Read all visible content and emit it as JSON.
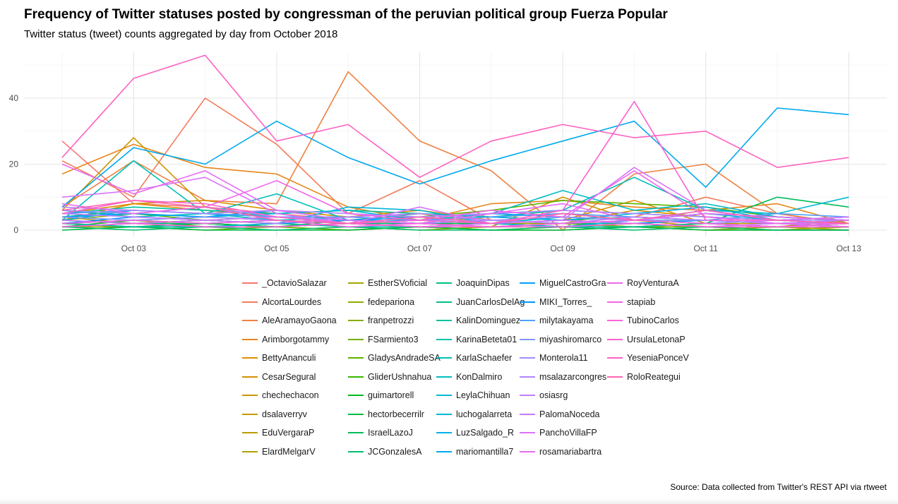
{
  "chart_data": {
    "type": "line",
    "title": "Frequency of Twitter statuses posted by congressman of the peruvian political group Fuerza Popular",
    "subtitle": "Twitter status (tweet) counts aggregated by day from October 2018",
    "caption": "Source: Data collected from Twitter's REST API via rtweet",
    "xlabel": "",
    "ylabel": "",
    "x": [
      "2018-10-02",
      "2018-10-03",
      "2018-10-04",
      "2018-10-05",
      "2018-10-06",
      "2018-10-07",
      "2018-10-08",
      "2018-10-09",
      "2018-10-10",
      "2018-10-11",
      "2018-10-12",
      "2018-10-13"
    ],
    "xticks": [
      "Oct 03",
      "Oct 05",
      "Oct 07",
      "Oct 09",
      "Oct 11",
      "Oct 13"
    ],
    "yticks": [
      0,
      20,
      40
    ],
    "ylim": [
      0,
      54
    ],
    "grid": true,
    "legend_position": "bottom",
    "series": [
      {
        "name": "_OctavioSalazar",
        "color": "#F8766D",
        "values": [
          27,
          8,
          7,
          5,
          3,
          2,
          2,
          1,
          1,
          2,
          1,
          1
        ]
      },
      {
        "name": "AlcortaLourdes",
        "color": "#F37B59",
        "values": [
          21,
          10,
          40,
          26,
          5,
          15,
          3,
          2,
          4,
          10,
          5,
          2
        ]
      },
      {
        "name": "AleAramayoGaona",
        "color": "#ED8141",
        "values": [
          7,
          21,
          9,
          8,
          48,
          27,
          18,
          0,
          17,
          20,
          5,
          2
        ]
      },
      {
        "name": "Arimborgotammy",
        "color": "#E7861B",
        "values": [
          17,
          26,
          19,
          17,
          7,
          3,
          8,
          9,
          7,
          6,
          8,
          2
        ]
      },
      {
        "name": "BettyAnanculi",
        "color": "#E08B00",
        "values": [
          3,
          8,
          6,
          4,
          3,
          5,
          2,
          3,
          9,
          2,
          1,
          3
        ]
      },
      {
        "name": "CesarSegural",
        "color": "#D89000",
        "values": [
          5,
          8,
          9,
          6,
          4,
          6,
          3,
          2,
          6,
          4,
          3,
          2
        ]
      },
      {
        "name": "chechechacon",
        "color": "#CF9400",
        "values": [
          6,
          28,
          7,
          3,
          2,
          2,
          1,
          10,
          3,
          1,
          0,
          1
        ]
      },
      {
        "name": "dsalaverryv",
        "color": "#C59900",
        "values": [
          2,
          3,
          2,
          1,
          2,
          1,
          2,
          1,
          2,
          1,
          1,
          1
        ]
      },
      {
        "name": "EduVergaraP",
        "color": "#BB9D00",
        "values": [
          4,
          2,
          3,
          2,
          3,
          2,
          1,
          2,
          1,
          2,
          2,
          1
        ]
      },
      {
        "name": "ElardMelgarV",
        "color": "#AFA100",
        "values": [
          1,
          1,
          2,
          1,
          0,
          1,
          0,
          1,
          1,
          0,
          1,
          0
        ]
      },
      {
        "name": "EstherSVoficial",
        "color": "#A3A500",
        "values": [
          2,
          3,
          1,
          2,
          1,
          0,
          1,
          1,
          2,
          1,
          0,
          1
        ]
      },
      {
        "name": "fedepariona",
        "color": "#95A900",
        "values": [
          3,
          5,
          4,
          3,
          4,
          3,
          2,
          2,
          1,
          2,
          1,
          2
        ]
      },
      {
        "name": "franpetrozzi",
        "color": "#85AD00",
        "values": [
          1,
          2,
          1,
          1,
          2,
          1,
          1,
          2,
          1,
          1,
          1,
          1
        ]
      },
      {
        "name": "FSarmiento3",
        "color": "#72B000",
        "values": [
          2,
          1,
          0,
          1,
          0,
          1,
          0,
          0,
          1,
          0,
          0,
          0
        ]
      },
      {
        "name": "GladysAndradeSA",
        "color": "#5BB300",
        "values": [
          4,
          5,
          3,
          2,
          3,
          4,
          6,
          9,
          8,
          7,
          4,
          3
        ]
      },
      {
        "name": "GliderUshnahua",
        "color": "#39B600",
        "values": [
          3,
          2,
          3,
          4,
          2,
          3,
          4,
          5,
          3,
          3,
          2,
          2
        ]
      },
      {
        "name": "guimartorell",
        "color": "#00B81F",
        "values": [
          1,
          3,
          2,
          1,
          2,
          1,
          1,
          1,
          2,
          1,
          1,
          2
        ]
      },
      {
        "name": "hectorbecerrilr",
        "color": "#00BA42",
        "values": [
          0,
          1,
          0,
          0,
          0,
          1,
          0,
          0,
          1,
          0,
          0,
          0
        ]
      },
      {
        "name": "IsraelLazoJ",
        "color": "#00BC59",
        "values": [
          2,
          1,
          2,
          1,
          3,
          2,
          2,
          4,
          3,
          2,
          10,
          7
        ]
      },
      {
        "name": "JCGonzalesA",
        "color": "#00BE6C",
        "values": [
          1,
          0,
          1,
          0,
          1,
          0,
          0,
          1,
          0,
          1,
          0,
          0
        ]
      },
      {
        "name": "JoaquinDipas",
        "color": "#00BF7D",
        "values": [
          3,
          2,
          2,
          3,
          2,
          2,
          3,
          2,
          2,
          3,
          2,
          2
        ]
      },
      {
        "name": "JuanCarlosDelAg",
        "color": "#00C08D",
        "values": [
          4,
          6,
          5,
          4,
          3,
          5,
          4,
          3,
          4,
          3,
          2,
          3
        ]
      },
      {
        "name": "KalinDominguez",
        "color": "#00C19C",
        "values": [
          5,
          7,
          6,
          5,
          6,
          5,
          4,
          6,
          5,
          4,
          3,
          4
        ]
      },
      {
        "name": "KarinaBeteta01",
        "color": "#00C1AA",
        "values": [
          2,
          1,
          1,
          2,
          1,
          1,
          2,
          1,
          1,
          2,
          1,
          1
        ]
      },
      {
        "name": "KarlaSchaefer",
        "color": "#00C0B8",
        "values": [
          3,
          21,
          5,
          11,
          3,
          2,
          5,
          6,
          16,
          6,
          3,
          2
        ]
      },
      {
        "name": "KonDalmiro",
        "color": "#00BDC4",
        "values": [
          6,
          4,
          5,
          3,
          4,
          3,
          5,
          12,
          6,
          8,
          4,
          3
        ]
      },
      {
        "name": "LeylaChihuan",
        "color": "#00BAD0",
        "values": [
          2,
          3,
          4,
          5,
          6,
          3,
          2,
          4,
          3,
          6,
          5,
          10
        ]
      },
      {
        "name": "luchogalarreta",
        "color": "#00B5DB",
        "values": [
          1,
          2,
          1,
          2,
          7,
          6,
          2,
          1,
          3,
          5,
          3,
          2
        ]
      },
      {
        "name": "LuzSalgado_R",
        "color": "#00B0E5",
        "values": [
          3,
          6,
          5,
          4,
          3,
          3,
          4,
          3,
          5,
          7,
          3,
          4
        ]
      },
      {
        "name": "mariomantilla7",
        "color": "#00A9EF",
        "values": [
          7,
          25,
          20,
          33,
          22,
          14,
          21,
          27,
          33,
          13,
          37,
          35
        ]
      },
      {
        "name": "MiguelCastroGra",
        "color": "#00A2F7",
        "values": [
          4,
          5,
          4,
          6,
          3,
          4,
          5,
          4,
          3,
          5,
          4,
          3
        ]
      },
      {
        "name": "MIKI_Torres_",
        "color": "#0099FC",
        "values": [
          2,
          4,
          3,
          2,
          3,
          4,
          2,
          3,
          2,
          3,
          2,
          1
        ]
      },
      {
        "name": "milytakayama",
        "color": "#529EFF",
        "values": [
          5,
          6,
          5,
          4,
          4,
          3,
          4,
          5,
          4,
          3,
          5,
          4
        ]
      },
      {
        "name": "miyashiromarco",
        "color": "#7F96FF",
        "values": [
          4,
          3,
          4,
          3,
          2,
          3,
          3,
          2,
          3,
          3,
          2,
          2
        ]
      },
      {
        "name": "Monterola11",
        "color": "#9A8EFF",
        "values": [
          6,
          5,
          7,
          4,
          3,
          2,
          3,
          4,
          3,
          2,
          3,
          3
        ]
      },
      {
        "name": "msalazarcongres",
        "color": "#AF86FF",
        "values": [
          7,
          6,
          5,
          6,
          5,
          4,
          5,
          6,
          5,
          4,
          3,
          4
        ]
      },
      {
        "name": "osiasrg",
        "color": "#C07EFF",
        "values": [
          5,
          4,
          3,
          2,
          4,
          5,
          3,
          2,
          4,
          3,
          2,
          3
        ]
      },
      {
        "name": "PalomaNoceda",
        "color": "#CF78FF",
        "values": [
          3,
          2,
          3,
          4,
          2,
          1,
          2,
          3,
          2,
          1,
          2,
          1
        ]
      },
      {
        "name": "PanchoVillaFP",
        "color": "#DB72FB",
        "values": [
          10,
          12,
          16,
          5,
          2,
          7,
          2,
          3,
          19,
          6,
          3,
          4
        ]
      },
      {
        "name": "rosamariabartra",
        "color": "#E76BF3",
        "values": [
          20,
          11,
          18,
          6,
          3,
          2,
          5,
          8,
          3,
          5,
          4,
          3
        ]
      },
      {
        "name": "RoyVenturaA",
        "color": "#EF67EB",
        "values": [
          8,
          5,
          7,
          15,
          5,
          3,
          6,
          4,
          18,
          4,
          2,
          2
        ]
      },
      {
        "name": "stapiab",
        "color": "#F564E3",
        "values": [
          2,
          3,
          2,
          3,
          1,
          2,
          1,
          2,
          3,
          2,
          1,
          2
        ]
      },
      {
        "name": "TubinoCarlos",
        "color": "#FA62D9",
        "values": [
          1,
          2,
          1,
          1,
          2,
          1,
          1,
          1,
          2,
          1,
          1,
          1
        ]
      },
      {
        "name": "UrsulaLetonaP",
        "color": "#FD61CE",
        "values": [
          5,
          9,
          8,
          4,
          2,
          3,
          2,
          6,
          39,
          3,
          3,
          2
        ]
      },
      {
        "name": "YeseniaPonceV",
        "color": "#FF62C1",
        "values": [
          22,
          46,
          53,
          27,
          32,
          16,
          27,
          32,
          28,
          30,
          19,
          22
        ]
      },
      {
        "name": "RoloReategui",
        "color": "#FF65B4",
        "values": [
          6,
          9,
          7,
          3,
          2,
          4,
          2,
          5,
          3,
          6,
          3,
          2
        ]
      }
    ]
  }
}
